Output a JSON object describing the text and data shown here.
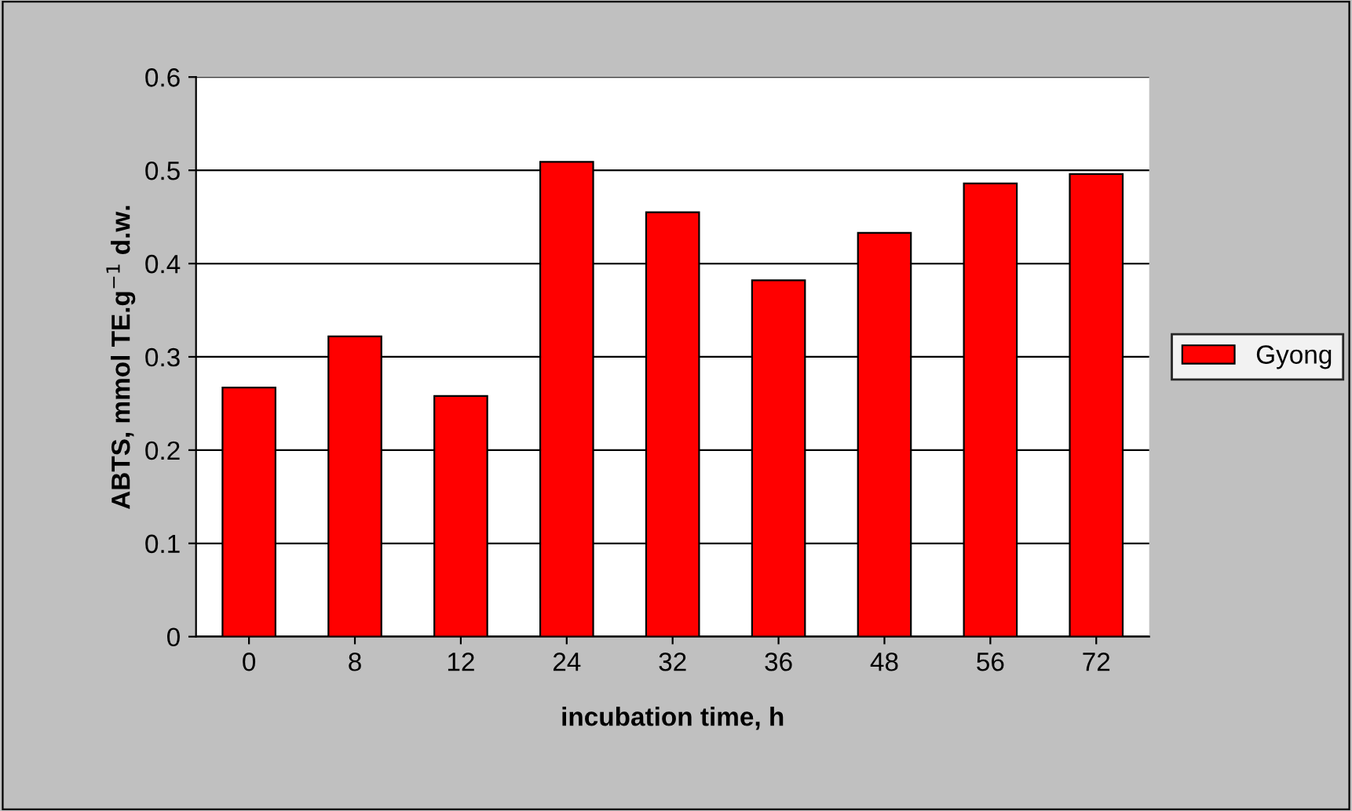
{
  "chart_data": {
    "type": "bar",
    "xlabel": "incubation time, h",
    "ylabel": "ABTS, mmol TE.g$^{−1}$ d.w.",
    "categories": [
      "0",
      "8",
      "12",
      "24",
      "32",
      "36",
      "48",
      "56",
      "72"
    ],
    "series": [
      {
        "name": "Gyong",
        "color": "#ff0000",
        "values": [
          0.267,
          0.322,
          0.258,
          0.509,
          0.455,
          0.382,
          0.433,
          0.486,
          0.496
        ]
      }
    ],
    "ylim": [
      0,
      0.6
    ],
    "yticks": [
      0,
      0.1,
      0.2,
      0.3,
      0.4,
      0.5,
      0.6
    ],
    "grid": "y",
    "legend": "right"
  }
}
